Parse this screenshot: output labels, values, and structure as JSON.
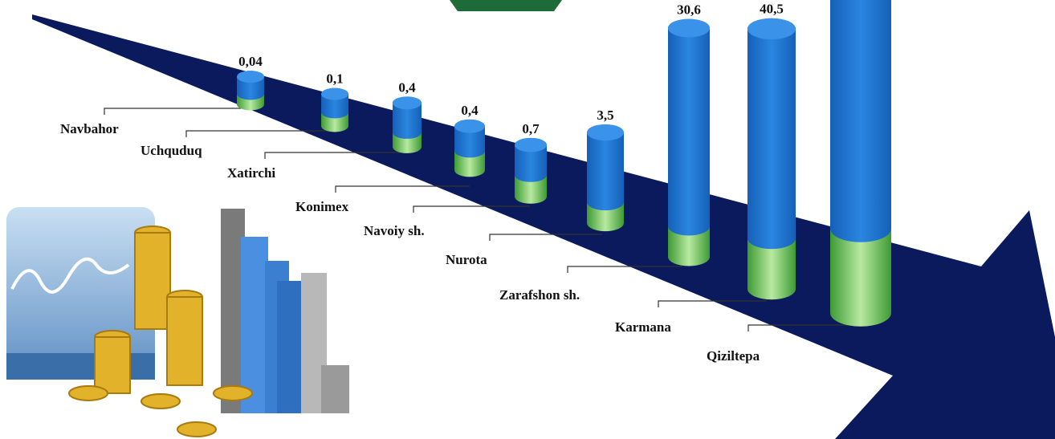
{
  "chart_data": {
    "type": "bar",
    "categories": [
      "Navbahor",
      "Uchquduq",
      "Xatirchi",
      "Konimex",
      "Navoiy sh.",
      "Nurota",
      "Zarafshon sh.",
      "Karmana",
      "Qiziltepa"
    ],
    "values": [
      0.04,
      0.1,
      0.4,
      0.4,
      0.7,
      3.5,
      30.6,
      40.5,
      null
    ],
    "value_labels": [
      "0,04",
      "0,1",
      "0,4",
      "0,4",
      "0,7",
      "3,5",
      "30,6",
      "40,5",
      null
    ],
    "color": "#1a6fc9"
  }
}
